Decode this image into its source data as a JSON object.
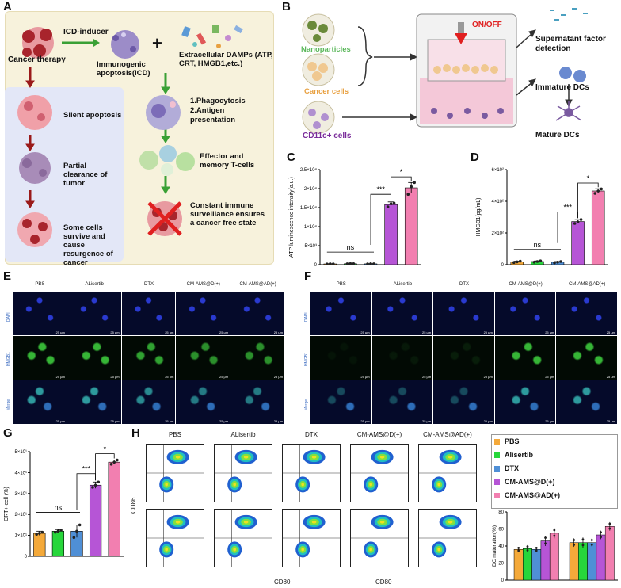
{
  "panel_labels": [
    "A",
    "B",
    "C",
    "D",
    "E",
    "F",
    "G",
    "H"
  ],
  "panelA": {
    "cancer_therapy": "Cancer  therapy",
    "icd_inducer": "ICD-inducer",
    "immunogenic": "Immunogenic apoptosis(ICD)",
    "damps": "Extracellular DAMPs (ATP, CRT, HMGB1,etc.)",
    "plus": "+",
    "phago": "1.Phagocytosis\n2.Antigen presentation",
    "effector": "Effector and memory T-cells",
    "constant": "Constant immune surveillance ensures a cancer free state",
    "silent": "Silent apoptosis",
    "partial": "Partial clearance of tumor",
    "survive": "Some cells survive and cause resurgence of cancer"
  },
  "panelB": {
    "on_off": "ON/OFF",
    "nanoparticles": "Nanoparticles",
    "cancer_cells": "Cancer cells",
    "cd11c": "CD11c+ cells",
    "supernatant": "Supernatant factor detection",
    "immature": "Immature DCs",
    "mature": "Mature DCs"
  },
  "colors": {
    "PBS": "#f4a93a",
    "Alisertib": "#27d63b",
    "DTX": "#4f8fd6",
    "D": "#b655d6",
    "AD": "#f27fb0",
    "panelA_bg": "#f7f2dc",
    "panelA_blue": "#e3e7f7",
    "arrow_green": "#3aa035",
    "arrow_red": "#9a1a1a",
    "on_off_red": "#e02020",
    "nano_green": "#5cb85c",
    "cancer_orange": "#e8a040",
    "cd11c_purple": "#7a2c9a"
  },
  "imaging_E": {
    "columns": [
      "PBS",
      "ALisertib",
      "DTX",
      "CM-AMS@D(+)",
      "CM-AMS@AD(+)"
    ],
    "rows": [
      "DAPI",
      "HMGB1",
      "Merge"
    ],
    "scale": "25 μm"
  },
  "imaging_F": {
    "columns": [
      "PBS",
      "ALisertib",
      "DTX",
      "CM-AMS@D(+)",
      "CM-AMS@AD(+)"
    ],
    "rows": [
      "DAPI",
      "HMGB1",
      "Merge"
    ],
    "scale": "25 μm"
  },
  "flow_H": {
    "columns": [
      "PBS",
      "ALisertib",
      "DTX",
      "CM-AMS@D(+)",
      "CM-AMS@AD(+)"
    ],
    "y_axis": "CD86",
    "x_axis": "CD80",
    "x_axis_2": "CD80"
  },
  "chart_data": [
    {
      "panel": "C",
      "type": "bar",
      "categories": [
        "PBS",
        "Alisertib",
        "DTX",
        "CM-AMS@D(+)",
        "CM-AMS@AD(+)"
      ],
      "values": [
        200,
        250,
        220,
        15800,
        20200
      ],
      "errors": [
        50,
        60,
        50,
        700,
        1400
      ],
      "points": [
        [
          180,
          220,
          200
        ],
        [
          230,
          280,
          240
        ],
        [
          200,
          240,
          220
        ],
        [
          15200,
          16000,
          16200
        ],
        [
          18500,
          20500,
          21600
        ]
      ],
      "ylabel": "ATP luminescence intensity(a.u.)",
      "ylim": [
        0,
        25000
      ],
      "ytick_labels": [
        "0",
        "5×10³",
        "1×10⁴",
        "1.5×10⁴",
        "2×10⁴",
        "2.5×10⁴"
      ],
      "ytick_values": [
        0,
        5000,
        10000,
        15000,
        20000,
        25000
      ],
      "annotations": [
        {
          "text": "ns",
          "from": 0,
          "to": 2
        },
        {
          "text": "***",
          "from": 2,
          "to": 3
        },
        {
          "text": "*",
          "from": 3,
          "to": 4
        }
      ]
    },
    {
      "panel": "D",
      "type": "bar",
      "categories": [
        "PBS",
        "Alisertib",
        "DTX",
        "CM-AMS@D(+)",
        "CM-AMS@AD(+)"
      ],
      "values": [
        18,
        20,
        16,
        272,
        465
      ],
      "errors": [
        4,
        4,
        4,
        12,
        14
      ],
      "points": [
        [
          14,
          18,
          22
        ],
        [
          16,
          20,
          24
        ],
        [
          12,
          16,
          20
        ],
        [
          260,
          270,
          285
        ],
        [
          450,
          465,
          478
        ]
      ],
      "ylabel": "HMGB1(pg/mL)",
      "ylim": [
        0,
        600
      ],
      "ytick_labels": [
        "0",
        "2×10²",
        "4×10²",
        "6×10²"
      ],
      "ytick_values": [
        0,
        200,
        400,
        600
      ],
      "annotations": [
        {
          "text": "ns",
          "from": 0,
          "to": 2
        },
        {
          "text": "***",
          "from": 2,
          "to": 3
        },
        {
          "text": "*",
          "from": 3,
          "to": 4
        }
      ]
    },
    {
      "panel": "G",
      "type": "bar",
      "categories": [
        "PBS",
        "Alisertib",
        "DTX",
        "CM-AMS@D(+)",
        "CM-AMS@AD(+)"
      ],
      "values": [
        11,
        12,
        12,
        34,
        45
      ],
      "errors": [
        1,
        0.8,
        3,
        1.5,
        1
      ],
      "points": [
        [
          10.5,
          11,
          11.5
        ],
        [
          11.5,
          12,
          12.5
        ],
        [
          9,
          12,
          15
        ],
        [
          33,
          34,
          35.5
        ],
        [
          44,
          45,
          46
        ]
      ],
      "ylabel": "CRT+ cell (%)",
      "ylim": [
        0,
        50
      ],
      "ytick_labels": [
        "0",
        "1×10¹",
        "2×10¹",
        "3×10¹",
        "4×10¹",
        "5×10¹"
      ],
      "ytick_values": [
        0,
        10,
        20,
        30,
        40,
        50
      ],
      "annotations": [
        {
          "text": "ns",
          "from": 0,
          "to": 2
        },
        {
          "text": "***",
          "from": 2,
          "to": 3
        },
        {
          "text": "*",
          "from": 3,
          "to": 4
        }
      ]
    },
    {
      "panel": "H-bar",
      "type": "bar",
      "groups": 2,
      "series": [
        {
          "name": "PBS",
          "values": [
            36,
            44
          ]
        },
        {
          "name": "Alisertib",
          "values": [
            37,
            44
          ]
        },
        {
          "name": "DTX",
          "values": [
            36,
            44
          ]
        },
        {
          "name": "CM-AMS@D(+)",
          "values": [
            46,
            53
          ]
        },
        {
          "name": "CM-AMS@AD(+)",
          "values": [
            55,
            63
          ]
        }
      ],
      "errors": [
        [
          3,
          5
        ],
        [
          4,
          6
        ],
        [
          3,
          5
        ],
        [
          6,
          5
        ],
        [
          6,
          5
        ]
      ],
      "ylabel": "DC maturation(%)",
      "ylim": [
        0,
        80
      ],
      "ytick_labels": [
        "0",
        "20",
        "40",
        "60",
        "80"
      ],
      "ytick_values": [
        0,
        20,
        40,
        60,
        80
      ],
      "legend": "top"
    }
  ]
}
